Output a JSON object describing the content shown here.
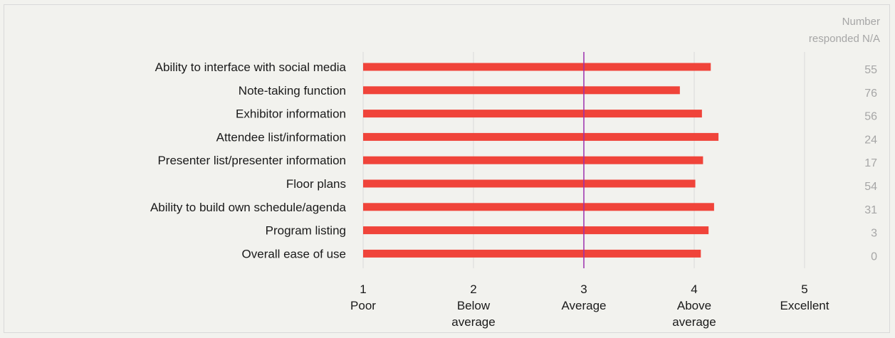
{
  "chart_data": {
    "type": "bar",
    "orientation": "horizontal",
    "categories": [
      "Ability to interface with social media",
      "Note-taking function",
      "Exhibitor information",
      "Attendee list/information",
      "Presenter list/presenter information",
      "Floor plans",
      "Ability to build own schedule/agenda",
      "Program listing",
      "Overall ease of use"
    ],
    "values": [
      4.15,
      3.87,
      4.07,
      4.22,
      4.08,
      4.01,
      4.18,
      4.13,
      4.06
    ],
    "xlim": [
      1,
      5
    ],
    "reference_line": 3,
    "x_ticks": [
      {
        "value": 1,
        "line1": "1",
        "line2": "Poor",
        "line3": ""
      },
      {
        "value": 2,
        "line1": "2",
        "line2": "Below",
        "line3": "average"
      },
      {
        "value": 3,
        "line1": "3",
        "line2": "Average",
        "line3": ""
      },
      {
        "value": 4,
        "line1": "4",
        "line2": "Above",
        "line3": "average"
      },
      {
        "value": 5,
        "line1": "5",
        "line2": "Excellent",
        "line3": ""
      }
    ],
    "na_header": [
      "Number",
      "responded N/A"
    ],
    "na_values": [
      "55",
      "76",
      "56",
      "24",
      "17",
      "54",
      "31",
      "3",
      "0"
    ],
    "colors": {
      "bar": "#f0443a",
      "reference": "#9b2fae",
      "grid": "#d9d9d9",
      "na_text": "#a6a6a6"
    }
  }
}
